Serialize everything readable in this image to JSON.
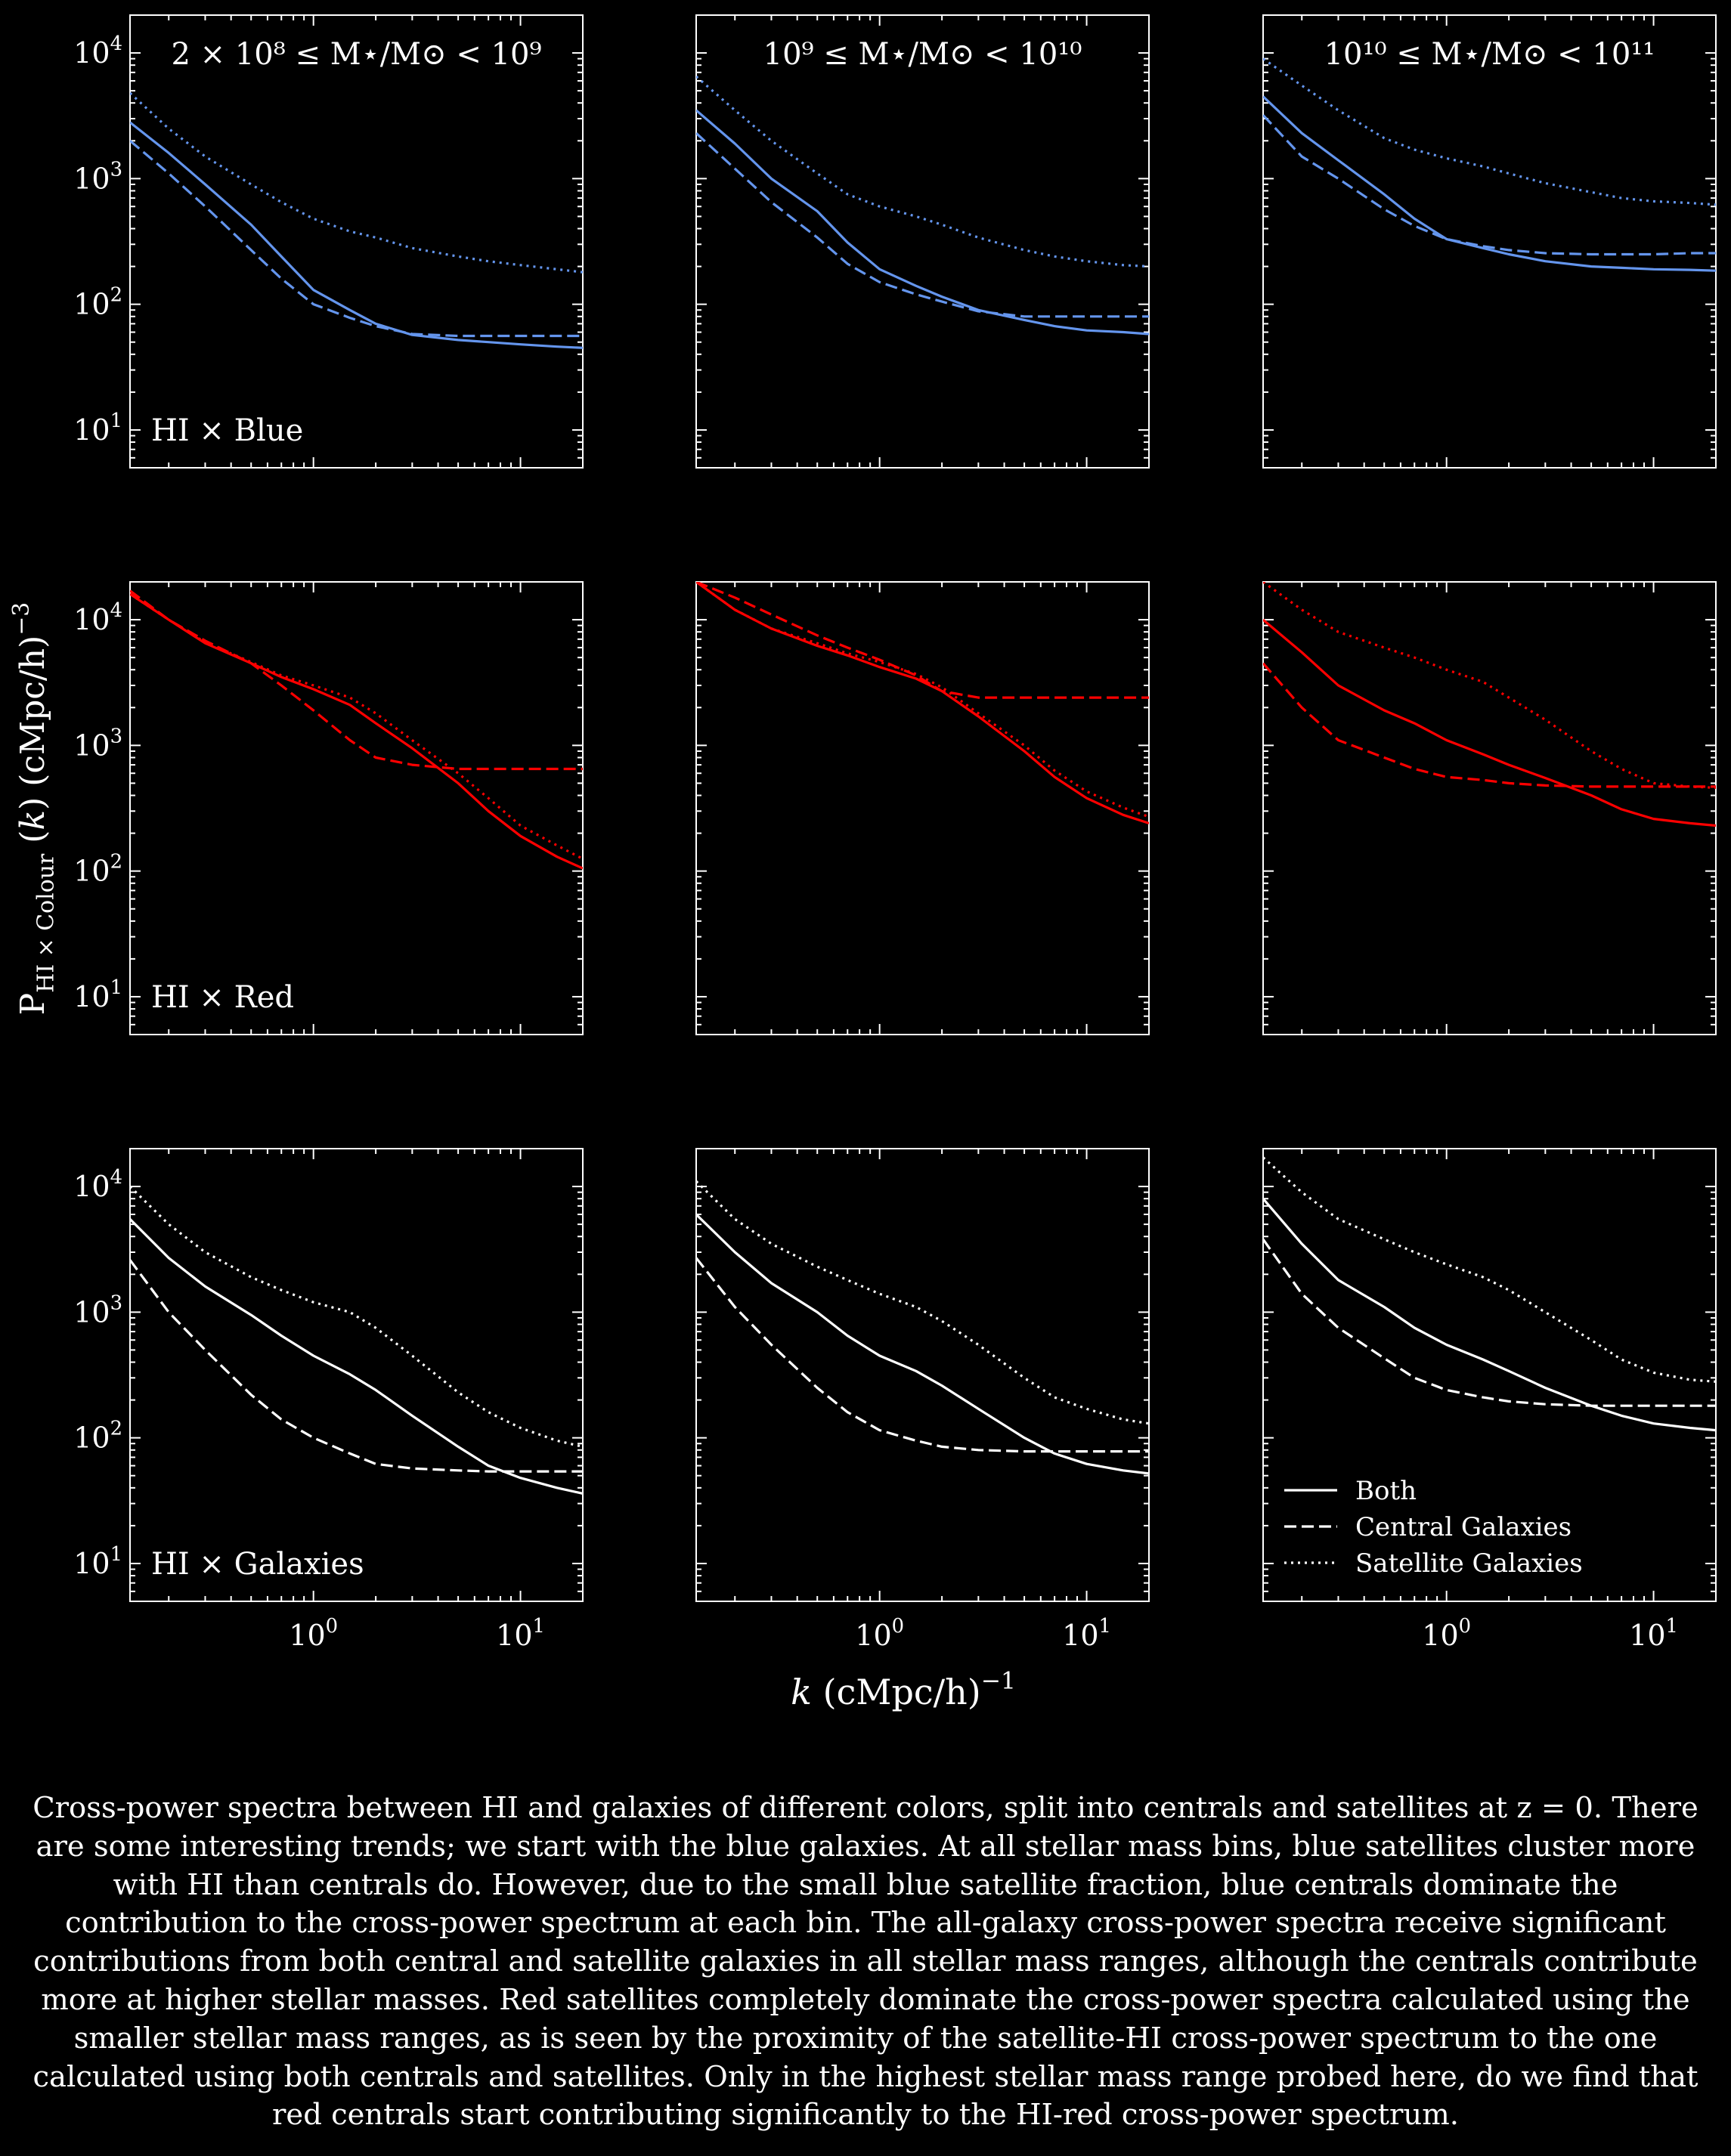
{
  "figure": {
    "ylabel_main": "P",
    "ylabel_sub": "HI × Colour",
    "ylabel_mid": "(",
    "ylabel_k": "k",
    "ylabel_tail": ") (cMpc/h)",
    "ylabel_sup": "−3",
    "xlabel_k": "k",
    "xlabel_tail": " (cMpc/h)",
    "xlabel_sup": "−1",
    "columns": [
      {
        "title": "2 × 10⁸ ≤  M⋆/M⊙  <  10⁹"
      },
      {
        "title": "10⁹ ≤  M⋆/M⊙  <  10¹⁰"
      },
      {
        "title": "10¹⁰ ≤  M⋆/M⊙  <  10¹¹"
      }
    ],
    "rows": [
      {
        "label": "HI × Blue",
        "color": "#6495ED"
      },
      {
        "label": "HI × Red",
        "color": "#FF0000"
      },
      {
        "label": "HI × Galaxies",
        "color": "#FFFFFF"
      }
    ],
    "y_tick_labels": [
      {
        "base": "10",
        "exp": "1"
      },
      {
        "base": "10",
        "exp": "2"
      },
      {
        "base": "10",
        "exp": "3"
      },
      {
        "base": "10",
        "exp": "4"
      }
    ],
    "x_tick_labels": [
      {
        "base": "10",
        "exp": "0"
      },
      {
        "base": "10",
        "exp": "1"
      }
    ],
    "legend": {
      "placement": "bottom-left of bottom-right panel",
      "items": [
        {
          "label": "Both",
          "style": "solid"
        },
        {
          "label": "Central Galaxies",
          "style": "dashed"
        },
        {
          "label": "Satellite Galaxies",
          "style": "dotted"
        }
      ]
    }
  },
  "chart_data": {
    "type": "line",
    "layout": "3x3 grid; rows = colour sample, columns = stellar mass range; shared log axes",
    "x_scale": "log",
    "y_scale": "log",
    "xlim": [
      0.13,
      20
    ],
    "ylim": [
      5,
      20000
    ],
    "x": [
      0.13,
      0.2,
      0.3,
      0.5,
      0.7,
      1,
      1.5,
      2,
      3,
      5,
      7,
      10,
      15,
      20
    ],
    "panels": [
      {
        "row": "HI × Blue",
        "column": 0,
        "series": [
          {
            "style": "solid",
            "values": [
              2800,
              1600,
              900,
              430,
              240,
              130,
              90,
              70,
              57,
              52,
              50,
              48,
              46,
              45
            ]
          },
          {
            "style": "dashed",
            "values": [
              2000,
              1100,
              600,
              270,
              160,
              100,
              78,
              67,
              58,
              56,
              56,
              56,
              56,
              56
            ]
          },
          {
            "style": "dotted",
            "values": [
              4800,
              2500,
              1500,
              900,
              650,
              480,
              380,
              340,
              280,
              240,
              220,
              205,
              190,
              180
            ]
          }
        ]
      },
      {
        "row": "HI × Blue",
        "column": 1,
        "series": [
          {
            "style": "solid",
            "values": [
              3500,
              1900,
              1000,
              550,
              310,
              190,
              140,
              115,
              90,
              75,
              67,
              62,
              60,
              58
            ]
          },
          {
            "style": "dashed",
            "values": [
              2300,
              1200,
              650,
              340,
              210,
              150,
              120,
              105,
              88,
              80,
              80,
              80,
              80,
              80
            ]
          },
          {
            "style": "dotted",
            "values": [
              6500,
              3500,
              2000,
              1100,
              750,
              600,
              500,
              430,
              340,
              270,
              240,
              220,
              205,
              200
            ]
          }
        ]
      },
      {
        "row": "HI × Blue",
        "column": 2,
        "series": [
          {
            "style": "solid",
            "values": [
              4500,
              2300,
              1400,
              750,
              480,
              330,
              280,
              250,
              220,
              200,
              195,
              190,
              188,
              185
            ]
          },
          {
            "style": "dashed",
            "values": [
              3200,
              1500,
              1000,
              570,
              420,
              330,
              290,
              270,
              255,
              250,
              250,
              250,
              255,
              255
            ]
          },
          {
            "style": "dotted",
            "values": [
              9000,
              5500,
              3500,
              2100,
              1700,
              1450,
              1250,
              1100,
              920,
              780,
              700,
              660,
              640,
              620
            ]
          }
        ]
      },
      {
        "row": "HI × Red",
        "column": 0,
        "series": [
          {
            "style": "solid",
            "values": [
              16000,
              10000,
              6500,
              4500,
              3500,
              2800,
              2100,
              1500,
              950,
              500,
              300,
              190,
              130,
              105
            ]
          },
          {
            "style": "dashed",
            "values": [
              17000,
              10000,
              6800,
              4500,
              3000,
              1900,
              1100,
              800,
              700,
              650,
              650,
              650,
              650,
              650
            ]
          },
          {
            "style": "dotted",
            "values": [
              16000,
              10000,
              6600,
              4600,
              3600,
              3000,
              2400,
              1800,
              1100,
              600,
              380,
              230,
              160,
              125
            ]
          }
        ]
      },
      {
        "row": "HI × Red",
        "column": 1,
        "series": [
          {
            "style": "solid",
            "values": [
              20000,
              12000,
              8500,
              6200,
              5200,
              4200,
              3400,
              2700,
              1700,
              900,
              560,
              380,
              280,
              240
            ]
          },
          {
            "style": "dashed",
            "values": [
              20000,
              15000,
              11000,
              7500,
              6000,
              4800,
              3600,
              2700,
              2400,
              2400,
              2400,
              2400,
              2400,
              2400
            ]
          },
          {
            "style": "dotted",
            "values": [
              20000,
              12000,
              8500,
              6500,
              5400,
              4600,
              3700,
              2900,
              1800,
              1000,
              630,
              430,
              320,
              270
            ]
          }
        ]
      },
      {
        "row": "HI × Red",
        "column": 2,
        "series": [
          {
            "style": "solid",
            "values": [
              10000,
              5500,
              3000,
              1900,
              1500,
              1100,
              850,
              700,
              550,
              400,
              310,
              260,
              240,
              230
            ]
          },
          {
            "style": "dashed",
            "values": [
              4500,
              2000,
              1100,
              800,
              650,
              560,
              530,
              500,
              480,
              470,
              470,
              470,
              470,
              470
            ]
          },
          {
            "style": "dotted",
            "values": [
              20000,
              12000,
              8000,
              6000,
              5000,
              4000,
              3200,
              2400,
              1600,
              900,
              650,
              500,
              470,
              460
            ]
          }
        ]
      },
      {
        "row": "HI × Galaxies",
        "column": 0,
        "series": [
          {
            "style": "solid",
            "values": [
              5500,
              2700,
              1600,
              950,
              650,
              450,
              320,
              240,
              150,
              85,
              60,
              48,
              40,
              36
            ]
          },
          {
            "style": "dashed",
            "values": [
              2600,
              1000,
              500,
              220,
              140,
              100,
              75,
              62,
              57,
              55,
              54,
              54,
              54,
              54
            ]
          },
          {
            "style": "dotted",
            "values": [
              10000,
              5000,
              3000,
              1900,
              1500,
              1200,
              1000,
              750,
              450,
              230,
              160,
              120,
              95,
              85
            ]
          }
        ]
      },
      {
        "row": "HI × Galaxies",
        "column": 1,
        "series": [
          {
            "style": "solid",
            "values": [
              6000,
              3000,
              1700,
              1000,
              650,
              450,
              340,
              260,
              170,
              100,
              75,
              62,
              55,
              52
            ]
          },
          {
            "style": "dashed",
            "values": [
              2700,
              1100,
              550,
              250,
              160,
              115,
              95,
              85,
              80,
              78,
              78,
              78,
              78,
              78
            ]
          },
          {
            "style": "dotted",
            "values": [
              11000,
              5500,
              3500,
              2300,
              1800,
              1400,
              1100,
              850,
              550,
              300,
              210,
              170,
              140,
              130
            ]
          }
        ]
      },
      {
        "row": "HI × Galaxies",
        "column": 2,
        "series": [
          {
            "style": "solid",
            "values": [
              8000,
              3500,
              1800,
              1100,
              750,
              550,
              420,
              340,
              250,
              180,
              150,
              130,
              120,
              115
            ]
          },
          {
            "style": "dashed",
            "values": [
              3800,
              1400,
              750,
              430,
              300,
              240,
              210,
              195,
              185,
              180,
              180,
              180,
              180,
              180
            ]
          },
          {
            "style": "dotted",
            "values": [
              17000,
              9000,
              5500,
              3800,
              3000,
              2400,
              1900,
              1500,
              1000,
              600,
              420,
              330,
              290,
              280
            ]
          }
        ]
      }
    ]
  },
  "caption": "Cross-power spectra between HI and galaxies of different colors, split into centrals and satellites at z = 0. There are some interesting trends; we start with the blue galaxies. At all stellar mass bins, blue satellites cluster more with HI than centrals do. However, due to the small blue satellite fraction, blue centrals dominate the contribution to the cross-power spectrum at each bin. The all-galaxy cross-power spectra receive significant contributions from both central and satellite galaxies in all stellar mass ranges, although the centrals contribute more at higher stellar masses. Red satellites completely dominate the cross-power spectra calculated using the smaller stellar mass ranges, as is seen by the proximity of the satellite-HI cross-power spectrum to the one calculated using both centrals and satellites. Only in the highest stellar mass range probed here, do we find that red centrals start contributing significantly to the HI-red cross-power spectrum."
}
